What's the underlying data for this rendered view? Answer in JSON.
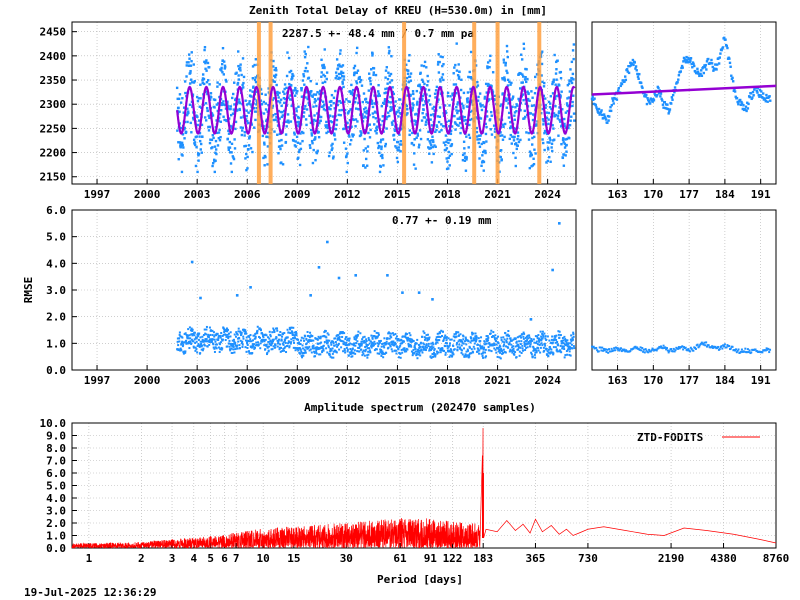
{
  "main_title": "Zenith Total Delay of KREU (H=530.0m) in [mm]",
  "ztd_stat": "2287.5 +-  48.4 mm /  0.7 mm pa",
  "rmse_stat": "0.77 +-  0.19 mm",
  "rmse_ylabel": "RMSE",
  "spectrum_title": "Amplitude spectrum (202470 samples)",
  "spectrum_xlabel": "Period [days]",
  "spectrum_legend": "ZTD-FODITS",
  "timestamp": "19-Jul-2025 12:36:29",
  "colors": {
    "series_blue": "#1e90ff",
    "fit_purple": "#9400d3",
    "breaks_orange": "#ffa040",
    "spectrum_red": "#ff0000",
    "grid": "#b0b0b0"
  },
  "chart_data": [
    {
      "id": "ztd_long",
      "type": "scatter",
      "xlim": [
        1995.5,
        2025.7
      ],
      "ylim": [
        2135,
        2470
      ],
      "x_tick_labels": [
        "1997",
        "2000",
        "2003",
        "2006",
        "2009",
        "2012",
        "2015",
        "2018",
        "2021",
        "2024"
      ],
      "x_ticks": [
        1997,
        2000,
        2003,
        2006,
        2009,
        2012,
        2015,
        2018,
        2021,
        2024
      ],
      "y_ticks": [
        2150,
        2200,
        2250,
        2300,
        2350,
        2400,
        2450
      ],
      "data_start": 2001.8,
      "data_end": 2025.6,
      "seasonal_fit": {
        "mean": 2287.5,
        "amplitude": 48,
        "trend_mm_per_year": 0.7
      },
      "scatter_envelope": {
        "low": 2190,
        "high": 2440
      },
      "breaks": [
        2006.7,
        2007.4,
        2015.4,
        2019.6,
        2021.0,
        2023.5
      ],
      "grid": true
    },
    {
      "id": "ztd_recent",
      "type": "scatter",
      "xlim": [
        158,
        194
      ],
      "ylim": [
        2135,
        2470
      ],
      "x_tick_labels": [
        "163",
        "170",
        "177",
        "184",
        "191"
      ],
      "x_ticks": [
        163,
        170,
        177,
        184,
        191
      ],
      "fit_line": [
        [
          158,
          2320
        ],
        [
          194,
          2338
        ]
      ],
      "points": [
        [
          158,
          2320
        ],
        [
          159,
          2290
        ],
        [
          160,
          2280
        ],
        [
          161,
          2265
        ],
        [
          162,
          2305
        ],
        [
          163,
          2320
        ],
        [
          164,
          2340
        ],
        [
          165,
          2370
        ],
        [
          166,
          2385
        ],
        [
          167,
          2365
        ],
        [
          168,
          2330
        ],
        [
          169,
          2300
        ],
        [
          170,
          2310
        ],
        [
          171,
          2330
        ],
        [
          172,
          2300
        ],
        [
          173,
          2290
        ],
        [
          174,
          2320
        ],
        [
          175,
          2360
        ],
        [
          176,
          2390
        ],
        [
          177,
          2395
        ],
        [
          178,
          2375
        ],
        [
          179,
          2360
        ],
        [
          180,
          2375
        ],
        [
          181,
          2390
        ],
        [
          182,
          2370
        ],
        [
          183,
          2395
        ],
        [
          184,
          2440
        ],
        [
          185,
          2380
        ],
        [
          186,
          2320
        ],
        [
          187,
          2300
        ],
        [
          188,
          2285
        ],
        [
          189,
          2315
        ],
        [
          190,
          2335
        ],
        [
          191,
          2320
        ],
        [
          192,
          2310
        ],
        [
          193,
          2315
        ]
      ],
      "grid": true
    },
    {
      "id": "rmse_long",
      "type": "scatter",
      "xlim": [
        1995.5,
        2025.7
      ],
      "ylim": [
        0,
        6.0
      ],
      "x_tick_labels": [
        "1997",
        "2000",
        "2003",
        "2006",
        "2009",
        "2012",
        "2015",
        "2018",
        "2021",
        "2024"
      ],
      "x_ticks": [
        1997,
        2000,
        2003,
        2006,
        2009,
        2012,
        2015,
        2018,
        2021,
        2024
      ],
      "y_tick_labels": [
        "0.0",
        "1.0",
        "2.0",
        "3.0",
        "4.0",
        "5.0",
        "6.0"
      ],
      "y_ticks": [
        0,
        1,
        2,
        3,
        4,
        5,
        6
      ],
      "band": {
        "start": 2001.8,
        "end": 2025.6,
        "low": 0.55,
        "high": 1.35
      },
      "outliers": [
        [
          2002.7,
          4.05
        ],
        [
          2003.2,
          2.7
        ],
        [
          2005.4,
          2.8
        ],
        [
          2006.2,
          3.1
        ],
        [
          2009.8,
          2.8
        ],
        [
          2010.3,
          3.85
        ],
        [
          2010.8,
          4.8
        ],
        [
          2011.5,
          3.45
        ],
        [
          2012.5,
          3.55
        ],
        [
          2014.4,
          3.55
        ],
        [
          2015.3,
          2.9
        ],
        [
          2016.3,
          2.9
        ],
        [
          2017.1,
          2.65
        ],
        [
          2023.0,
          1.9
        ],
        [
          2024.7,
          5.5
        ],
        [
          2024.3,
          3.75
        ]
      ],
      "grid": true
    },
    {
      "id": "rmse_recent",
      "type": "scatter",
      "xlim": [
        158,
        194
      ],
      "ylim": [
        0,
        6.0
      ],
      "x_tick_labels": [
        "163",
        "170",
        "177",
        "184",
        "191"
      ],
      "x_ticks": [
        163,
        170,
        177,
        184,
        191
      ],
      "points": [
        [
          158,
          0.95
        ],
        [
          159,
          0.75
        ],
        [
          160,
          0.8
        ],
        [
          161,
          0.7
        ],
        [
          162,
          0.75
        ],
        [
          163,
          0.8
        ],
        [
          164,
          0.75
        ],
        [
          165,
          0.7
        ],
        [
          166,
          0.8
        ],
        [
          167,
          0.85
        ],
        [
          168,
          0.75
        ],
        [
          169,
          0.7
        ],
        [
          170,
          0.75
        ],
        [
          171,
          0.8
        ],
        [
          172,
          0.85
        ],
        [
          173,
          0.7
        ],
        [
          174,
          0.75
        ],
        [
          175,
          0.8
        ],
        [
          176,
          0.85
        ],
        [
          177,
          0.75
        ],
        [
          178,
          0.8
        ],
        [
          179,
          0.95
        ],
        [
          180,
          1.0
        ],
        [
          181,
          0.9
        ],
        [
          182,
          0.85
        ],
        [
          183,
          0.8
        ],
        [
          184,
          0.9
        ],
        [
          185,
          0.85
        ],
        [
          186,
          0.75
        ],
        [
          187,
          0.7
        ],
        [
          188,
          0.75
        ],
        [
          189,
          0.7
        ],
        [
          190,
          0.75
        ],
        [
          191,
          0.65
        ],
        [
          192,
          0.75
        ],
        [
          193,
          0.7
        ]
      ],
      "grid": true
    },
    {
      "id": "spectrum",
      "type": "line",
      "x_scale": "log",
      "xlim": [
        0.8,
        8760
      ],
      "ylim": [
        0,
        10.0
      ],
      "x_tick_labels": [
        "1",
        "2",
        "3",
        "4",
        "5",
        "6",
        "7",
        "10",
        "15",
        "30",
        "61",
        "91",
        "122",
        "183",
        "365",
        "730",
        "2190",
        "4380",
        "8760"
      ],
      "x_ticks": [
        1,
        2,
        3,
        4,
        5,
        6,
        7,
        10,
        15,
        30,
        61,
        91,
        122,
        183,
        365,
        730,
        2190,
        4380,
        8760
      ],
      "y_tick_labels": [
        "0.0",
        "1.0",
        "2.0",
        "3.0",
        "4.0",
        "5.0",
        "6.0",
        "7.0",
        "8.0",
        "9.0",
        "10.0"
      ],
      "y_ticks": [
        0,
        1,
        2,
        3,
        4,
        5,
        6,
        7,
        8,
        9,
        10
      ],
      "envelope": [
        [
          0.8,
          0.3
        ],
        [
          2,
          0.4
        ],
        [
          5,
          0.8
        ],
        [
          10,
          1.3
        ],
        [
          30,
          1.7
        ],
        [
          61,
          2.0
        ],
        [
          91,
          2.0
        ],
        [
          122,
          1.8
        ],
        [
          175,
          1.6
        ]
      ],
      "peaks": [
        [
          182.6,
          9.6
        ],
        [
          181,
          7.4
        ],
        [
          184,
          6.0
        ]
      ],
      "tail": [
        [
          190,
          1.5
        ],
        [
          220,
          1.3
        ],
        [
          250,
          2.2
        ],
        [
          280,
          1.4
        ],
        [
          310,
          1.9
        ],
        [
          340,
          1.2
        ],
        [
          365,
          2.3
        ],
        [
          400,
          1.3
        ],
        [
          450,
          1.8
        ],
        [
          500,
          1.1
        ],
        [
          550,
          1.5
        ],
        [
          600,
          1.0
        ],
        [
          650,
          1.2
        ],
        [
          730,
          1.5
        ],
        [
          900,
          1.7
        ],
        [
          1200,
          1.4
        ],
        [
          1600,
          1.1
        ],
        [
          2000,
          1.0
        ],
        [
          2600,
          1.6
        ],
        [
          3500,
          1.4
        ],
        [
          5000,
          1.1
        ],
        [
          7000,
          0.7
        ],
        [
          8760,
          0.4
        ]
      ],
      "grid": true
    }
  ]
}
